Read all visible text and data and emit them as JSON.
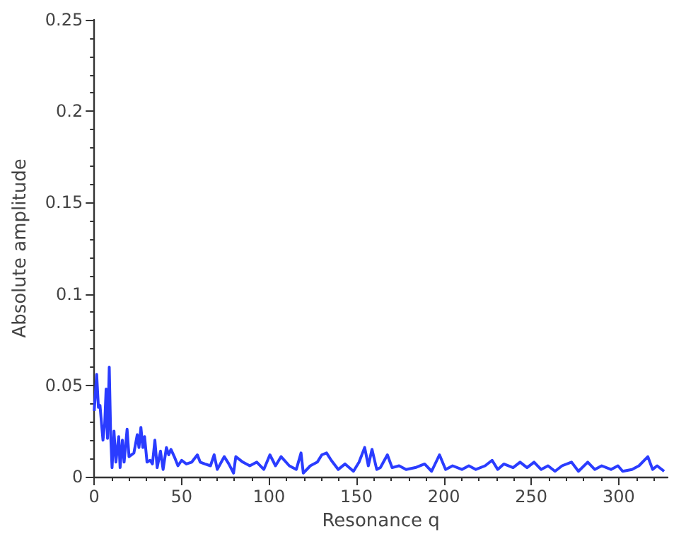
{
  "chart_data": {
    "type": "line",
    "xlabel": "Resonance q",
    "ylabel": "Absolute amplitude",
    "xlim": [
      0,
      328
    ],
    "xticks": [
      0,
      50,
      100,
      150,
      200,
      250,
      300
    ],
    "ylim": [
      0,
      0.25
    ],
    "yticks": [
      0,
      0.05,
      0.1,
      0.15,
      0.2,
      0.25
    ],
    "grid": false,
    "marker": "none",
    "line_style": "solid",
    "series": [
      {
        "color": "#2a3cff",
        "x": [
          0,
          1.4,
          2.4,
          3.3,
          5,
          6,
          6.8,
          7.6,
          8.6,
          9.4,
          10.2,
          11.3,
          12.4,
          14,
          14.8,
          16.1,
          17.1,
          18.8,
          19.9,
          22.7,
          24.6,
          25.6,
          26.7,
          27.8,
          28.8,
          30.2,
          32,
          33.3,
          34.7,
          36,
          37.9,
          39.4,
          41.3,
          42.6,
          43.9,
          45.8,
          47.9,
          50,
          52.7,
          55.8,
          59,
          60.6,
          63.3,
          66.5,
          68.6,
          70.4,
          74.4,
          77,
          79.7,
          81,
          85,
          89,
          93,
          97,
          100.5,
          103.7,
          106.9,
          111.6,
          115.6,
          118.3,
          119.6,
          123.6,
          127.6,
          130.2,
          132.9,
          135.6,
          139.6,
          143.5,
          148.3,
          151.5,
          154.7,
          156.8,
          158.9,
          161.6,
          163.7,
          167.7,
          170.4,
          174.4,
          178.4,
          183.7,
          189,
          193,
          197.5,
          201,
          205,
          210.3,
          214.3,
          218.3,
          223.6,
          227.6,
          230.8,
          234.3,
          239.6,
          243.6,
          247.6,
          251.6,
          255.6,
          259.6,
          263.6,
          267.6,
          273,
          277,
          282.3,
          286.3,
          290.3,
          295.6,
          299.6,
          302.3,
          307.6,
          311.6,
          316.7,
          319.4,
          322,
          326
        ],
        "values": [
          0.036,
          0.056,
          0.038,
          0.039,
          0.02,
          0.029,
          0.048,
          0.021,
          0.06,
          0.023,
          0.005,
          0.025,
          0.008,
          0.022,
          0.005,
          0.02,
          0.008,
          0.026,
          0.011,
          0.013,
          0.023,
          0.016,
          0.027,
          0.016,
          0.022,
          0.008,
          0.009,
          0.007,
          0.02,
          0.005,
          0.014,
          0.004,
          0.016,
          0.012,
          0.015,
          0.011,
          0.006,
          0.009,
          0.007,
          0.008,
          0.012,
          0.008,
          0.007,
          0.006,
          0.012,
          0.004,
          0.011,
          0.007,
          0.002,
          0.011,
          0.008,
          0.006,
          0.008,
          0.004,
          0.012,
          0.006,
          0.011,
          0.006,
          0.004,
          0.013,
          0.002,
          0.006,
          0.008,
          0.012,
          0.013,
          0.009,
          0.004,
          0.007,
          0.003,
          0.008,
          0.016,
          0.006,
          0.015,
          0.004,
          0.005,
          0.012,
          0.005,
          0.006,
          0.004,
          0.005,
          0.007,
          0.003,
          0.012,
          0.004,
          0.006,
          0.004,
          0.006,
          0.004,
          0.006,
          0.009,
          0.004,
          0.007,
          0.005,
          0.008,
          0.005,
          0.008,
          0.004,
          0.006,
          0.003,
          0.006,
          0.008,
          0.003,
          0.008,
          0.004,
          0.006,
          0.004,
          0.006,
          0.003,
          0.004,
          0.006,
          0.011,
          0.004,
          0.006,
          0.003
        ]
      }
    ]
  }
}
